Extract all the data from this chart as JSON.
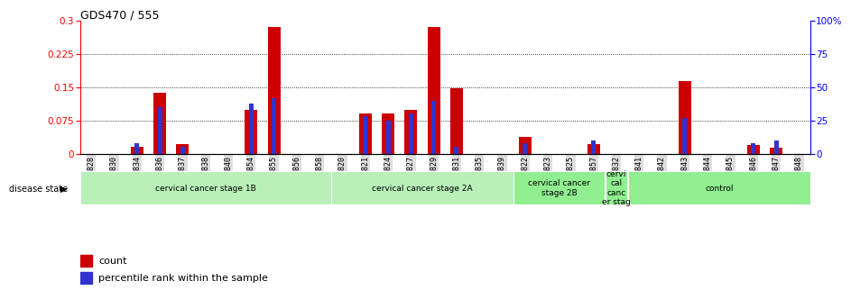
{
  "title": "GDS470 / 555",
  "samples": [
    "GSM7828",
    "GSM7830",
    "GSM7834",
    "GSM7836",
    "GSM7837",
    "GSM7838",
    "GSM7840",
    "GSM7854",
    "GSM7855",
    "GSM7856",
    "GSM7858",
    "GSM7820",
    "GSM7821",
    "GSM7824",
    "GSM7827",
    "GSM7829",
    "GSM7831",
    "GSM7835",
    "GSM7839",
    "GSM7822",
    "GSM7823",
    "GSM7825",
    "GSM7857",
    "GSM7832",
    "GSM7841",
    "GSM7842",
    "GSM7843",
    "GSM7844",
    "GSM7845",
    "GSM7846",
    "GSM7847",
    "GSM7848"
  ],
  "count": [
    0.0,
    0.0,
    0.015,
    0.138,
    0.022,
    0.0,
    0.0,
    0.1,
    0.285,
    0.0,
    0.0,
    0.0,
    0.09,
    0.09,
    0.1,
    0.285,
    0.148,
    0.0,
    0.0,
    0.038,
    0.0,
    0.0,
    0.022,
    0.0,
    0.0,
    0.0,
    0.163,
    0.0,
    0.0,
    0.02,
    0.013,
    0.0
  ],
  "percentile": [
    0.0,
    0.0,
    8.0,
    35.0,
    5.0,
    0.0,
    0.0,
    38.0,
    42.0,
    0.0,
    0.0,
    0.0,
    28.0,
    25.0,
    30.0,
    40.0,
    5.0,
    0.0,
    0.0,
    8.0,
    0.0,
    0.0,
    10.0,
    0.0,
    0.0,
    0.0,
    27.0,
    0.0,
    0.0,
    8.0,
    10.0,
    0.0
  ],
  "disease_groups": [
    {
      "label": "cervical cancer stage 1B",
      "start": 0,
      "end": 11,
      "color": "#b8f0b8"
    },
    {
      "label": "cervical cancer stage 2A",
      "start": 11,
      "end": 19,
      "color": "#b8f0b8"
    },
    {
      "label": "cervical cancer\nstage 2B",
      "start": 19,
      "end": 23,
      "color": "#90EE90"
    },
    {
      "label": "cervi\ncal\ncanc\ner stag",
      "start": 23,
      "end": 24,
      "color": "#90EE90"
    },
    {
      "label": "control",
      "start": 24,
      "end": 32,
      "color": "#90EE90"
    }
  ],
  "ylim_left": [
    0.0,
    0.3
  ],
  "ylim_right": [
    0.0,
    100.0
  ],
  "yticks_left": [
    0.0,
    0.075,
    0.15,
    0.225,
    0.3
  ],
  "yticks_right": [
    0,
    25,
    50,
    75,
    100
  ],
  "bar_color_red": "#CC0000",
  "bar_color_blue": "#3333CC",
  "background_color": "#ffffff",
  "bar_width": 0.55,
  "blue_bar_width": 0.2
}
